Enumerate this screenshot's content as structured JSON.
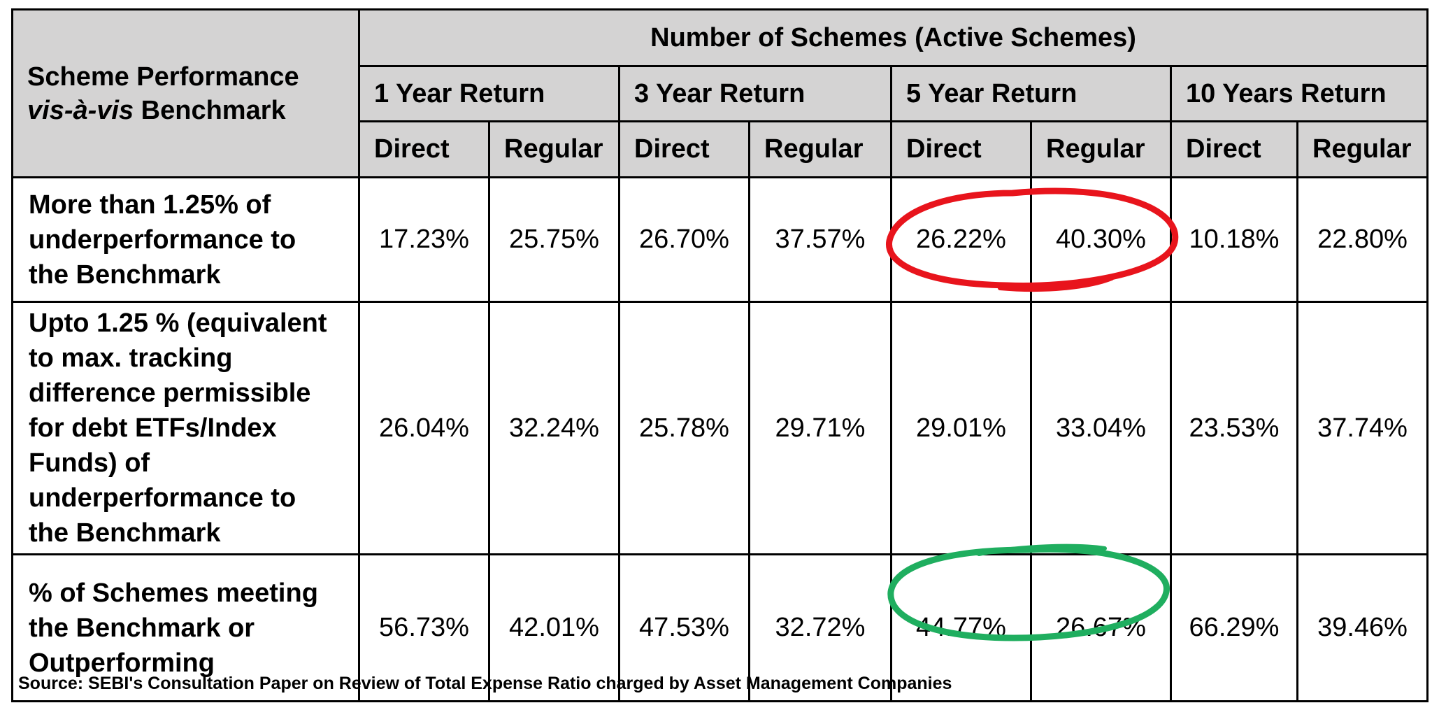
{
  "table": {
    "corner_label_part1": "Scheme Performance ",
    "corner_label_italic": "vis-à-vis",
    "corner_label_part2": " Benchmark",
    "group_header": "Number of Schemes (Active Schemes)",
    "periods": [
      "1 Year Return",
      "3 Year Return",
      "5 Year Return",
      "10 Years Return"
    ],
    "plan_types": [
      "Direct",
      "Regular",
      "Direct",
      "Regular",
      "Direct",
      "Regular",
      "Direct",
      "Regular"
    ],
    "rows": [
      {
        "label": "More than 1.25% of underperformance to the Benchmark",
        "values": [
          "17.23%",
          "25.75%",
          "26.70%",
          "37.57%",
          "26.22%",
          "40.30%",
          "10.18%",
          "22.80%"
        ]
      },
      {
        "label": "Upto  1.25 % (equivalent to max. tracking difference permissible for debt ETFs/Index Funds) of underperformance to the Benchmark",
        "values": [
          "26.04%",
          "32.24%",
          "25.78%",
          "29.71%",
          "29.01%",
          "33.04%",
          "23.53%",
          "37.74%"
        ]
      },
      {
        "label": "% of Schemes meeting the Benchmark or Outperforming",
        "values": [
          "56.73%",
          "42.01%",
          "47.53%",
          "32.72%",
          "44.77%",
          "26.67%",
          "66.29%",
          "39.46%"
        ]
      }
    ]
  },
  "highlights": {
    "red_color": "#e8141c",
    "green_color": "#1fae5f"
  },
  "source_note": "Source: SEBI's Consultation Paper on Review of Total Expense Ratio charged by Asset Management Companies"
}
